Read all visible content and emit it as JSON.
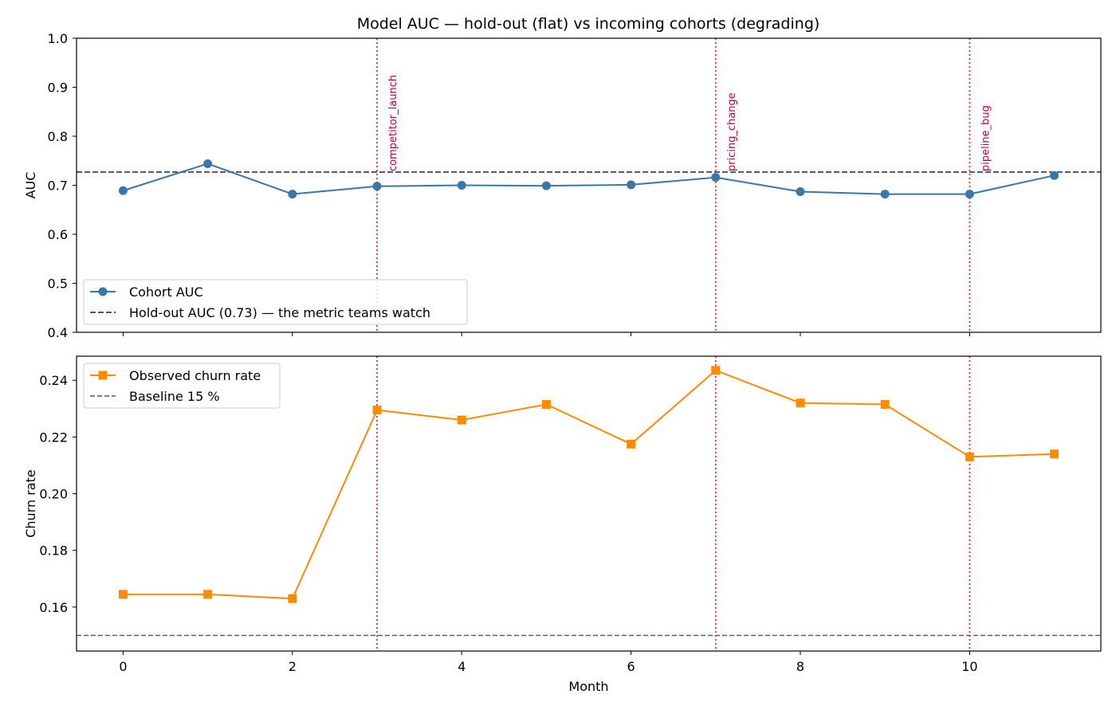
{
  "title": "Model AUC — hold-out (flat) vs incoming cohorts (degrading)",
  "events": [
    {
      "month": 3,
      "label": "competitor_launch"
    },
    {
      "month": 7,
      "label": "pricing_change"
    },
    {
      "month": 10,
      "label": "pipeline_bug"
    }
  ],
  "chart_data": [
    {
      "type": "line",
      "ylabel": "AUC",
      "ylim": [
        0.4,
        1.0
      ],
      "xlim": [
        -0.55,
        11.55
      ],
      "yticks": [
        0.4,
        0.5,
        0.6,
        0.7,
        0.8,
        0.9,
        1.0
      ],
      "ytick_labels": [
        "0.4",
        "0.5",
        "0.6",
        "0.7",
        "0.8",
        "0.9",
        "1.0"
      ],
      "x": [
        0,
        1,
        2,
        3,
        4,
        5,
        6,
        7,
        8,
        9,
        10,
        11
      ],
      "series": [
        {
          "name": "Cohort AUC",
          "values": [
            0.689,
            0.744,
            0.682,
            0.698,
            0.7,
            0.699,
            0.701,
            0.716,
            0.687,
            0.682,
            0.682,
            0.72
          ],
          "color": "#3a76a9",
          "marker": "circle"
        }
      ],
      "hline": {
        "name": "Hold-out AUC (0.73) — the metric teams watch",
        "value": 0.727,
        "color": "#555555",
        "style": "dashed"
      },
      "legend": "lower-left",
      "grid": false
    },
    {
      "type": "line",
      "ylabel": "Churn rate",
      "xlabel": "Month",
      "ylim": [
        0.1445,
        0.2485
      ],
      "xlim": [
        -0.55,
        11.55
      ],
      "yticks": [
        0.16,
        0.18,
        0.2,
        0.22,
        0.24
      ],
      "ytick_labels": [
        "0.16",
        "0.18",
        "0.20",
        "0.22",
        "0.24"
      ],
      "xticks": [
        0,
        2,
        4,
        6,
        8,
        10
      ],
      "xtick_labels": [
        "0",
        "2",
        "4",
        "6",
        "8",
        "10"
      ],
      "x": [
        0,
        1,
        2,
        3,
        4,
        5,
        6,
        7,
        8,
        9,
        10,
        11
      ],
      "series": [
        {
          "name": "Observed churn rate",
          "values": [
            0.1645,
            0.1645,
            0.163,
            0.2295,
            0.226,
            0.2315,
            0.2175,
            0.2435,
            0.232,
            0.2315,
            0.213,
            0.214
          ],
          "color": "#ff8c00",
          "marker": "square"
        }
      ],
      "hline": {
        "name": "Baseline 15 %",
        "value": 0.15,
        "color": "#555555",
        "style": "dashed"
      },
      "legend": "top-left",
      "grid": false
    }
  ],
  "colors": {
    "event_line": "#e8323c",
    "event_text": "#c8003c"
  }
}
